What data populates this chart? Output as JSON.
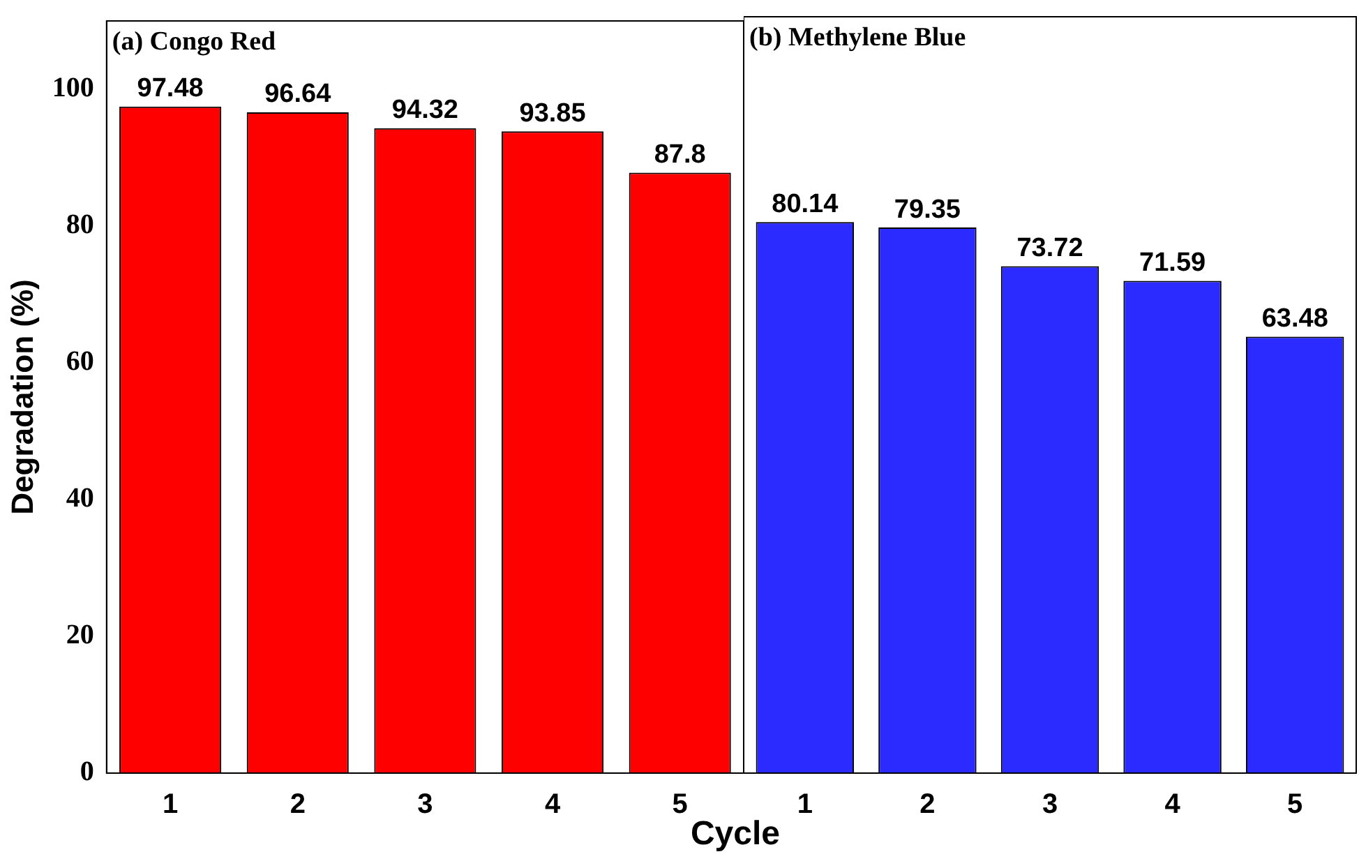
{
  "chart_data": [
    {
      "type": "bar",
      "title": "(a) Congo Red",
      "ylabel": "Degradation (%)",
      "xlabel": "Cycle",
      "categories": [
        "1",
        "2",
        "3",
        "4",
        "5"
      ],
      "values": [
        97.48,
        96.64,
        94.32,
        93.85,
        87.8
      ],
      "color": "#ff0000",
      "ylim": [
        0,
        110
      ],
      "yticks": [
        0,
        20,
        40,
        60,
        80,
        100
      ],
      "data_labels": true
    },
    {
      "type": "bar",
      "title": "(b) Methylene Blue",
      "categories": [
        "1",
        "2",
        "3",
        "4",
        "5"
      ],
      "values": [
        80.14,
        79.35,
        73.72,
        71.59,
        63.48
      ],
      "color": "#2b2bff",
      "ylim": [
        0,
        110
      ],
      "yticks": [
        0,
        20,
        40,
        60,
        80,
        100
      ],
      "data_labels": true,
      "tick_labels": "x"
    }
  ]
}
